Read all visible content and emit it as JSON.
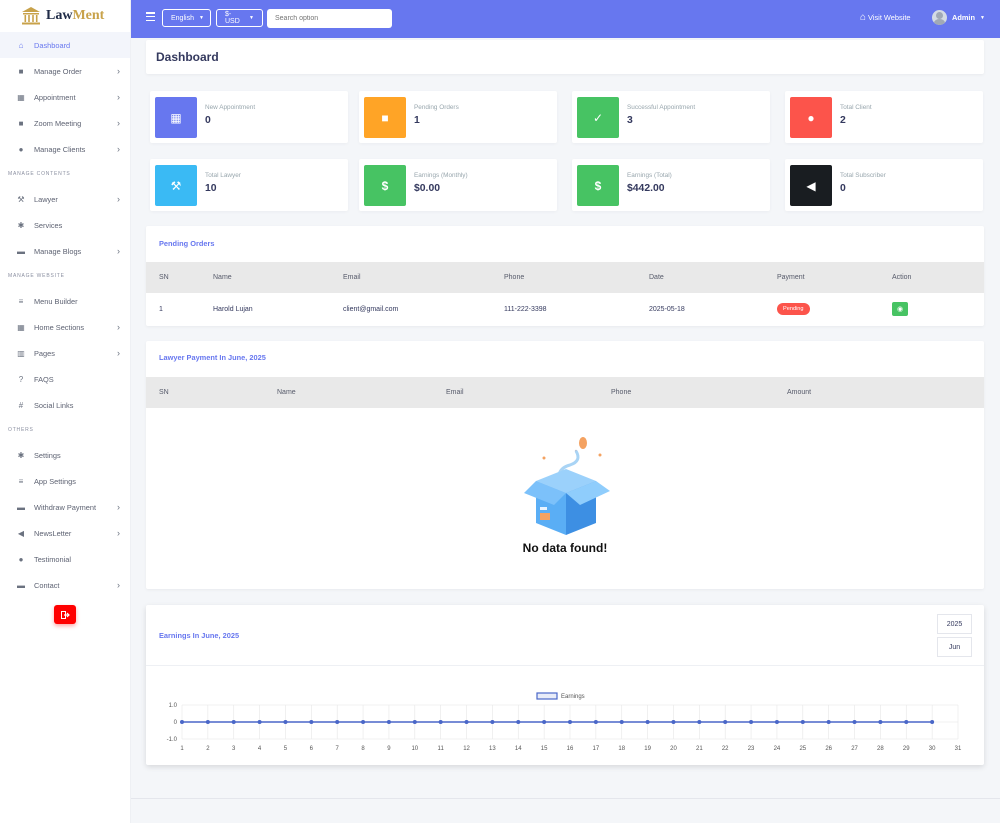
{
  "brand": {
    "name_part1": "Law",
    "name_part2": "Ment"
  },
  "sidebar": {
    "items": [
      {
        "label": "Dashboard",
        "icon": "home-icon",
        "chevron": false
      },
      {
        "label": "Manage Order",
        "icon": "shopping-bag-icon",
        "chevron": true
      },
      {
        "label": "Appointment",
        "icon": "calendar-icon",
        "chevron": true
      },
      {
        "label": "Zoom Meeting",
        "icon": "video-icon",
        "chevron": true
      },
      {
        "label": "Manage Clients",
        "icon": "user-icon",
        "chevron": true
      },
      {
        "label": "Lawyer",
        "icon": "gavel-icon",
        "chevron": true
      },
      {
        "label": "Services",
        "icon": "cog-icon",
        "chevron": false
      },
      {
        "label": "Manage Blogs",
        "icon": "newspaper-icon",
        "chevron": true
      },
      {
        "label": "Menu Builder",
        "icon": "bars-icon",
        "chevron": false
      },
      {
        "label": "Home Sections",
        "icon": "grid-icon",
        "chevron": true
      },
      {
        "label": "Pages",
        "icon": "columns-icon",
        "chevron": true
      },
      {
        "label": "FAQS",
        "icon": "question-icon",
        "chevron": false
      },
      {
        "label": "Social Links",
        "icon": "hashtag-icon",
        "chevron": false
      },
      {
        "label": "Settings",
        "icon": "gear-icon",
        "chevron": false
      },
      {
        "label": "App Settings",
        "icon": "list-icon",
        "chevron": false
      },
      {
        "label": "Withdraw Payment",
        "icon": "money-icon",
        "chevron": true
      },
      {
        "label": "NewsLetter",
        "icon": "megaphone-icon",
        "chevron": true
      },
      {
        "label": "Testimonial",
        "icon": "comment-icon",
        "chevron": false
      },
      {
        "label": "Contact",
        "icon": "envelope-icon",
        "chevron": true
      }
    ],
    "headers": [
      "MANAGE CONTENTS",
      "MANAGE WEBSITE",
      "OTHERS"
    ]
  },
  "topbar": {
    "language": "English",
    "currency": "$-USD",
    "search_placeholder": "Search option",
    "visit_website": "Visit Website",
    "user": "Admin",
    "accent": "#6777ef"
  },
  "page_title": "Dashboard",
  "stats": [
    {
      "label": "New Appointment",
      "value": "0",
      "color": "#6777ef",
      "icon": "calendar-icon"
    },
    {
      "label": "Pending Orders",
      "value": "1",
      "color": "#ffa426",
      "icon": "shopping-bag-icon"
    },
    {
      "label": "Successful Appointment",
      "value": "3",
      "color": "#47c363",
      "icon": "calendar-check-icon"
    },
    {
      "label": "Total Client",
      "value": "2",
      "color": "#fc544b",
      "icon": "user-icon"
    },
    {
      "label": "Total Lawyer",
      "value": "10",
      "color": "#3abaf4",
      "icon": "gavel-icon"
    },
    {
      "label": "Earnings (Monthly)",
      "value": "$0.00",
      "color": "#47c363",
      "icon": "dollar-icon"
    },
    {
      "label": "Earnings (Total)",
      "value": "$442.00",
      "color": "#47c363",
      "icon": "dollar-icon"
    },
    {
      "label": "Total Subscriber",
      "value": "0",
      "color": "#191d21",
      "icon": "megaphone-icon"
    }
  ],
  "pending_orders": {
    "title": "Pending Orders",
    "columns": [
      "SN",
      "Name",
      "Email",
      "Phone",
      "Date",
      "Payment",
      "Action"
    ],
    "rows": [
      {
        "sn": "1",
        "name": "Harold Lujan",
        "email": "client@gmail.com",
        "phone": "111-222-3398",
        "date": "2025-05-18",
        "payment": "Pending"
      }
    ]
  },
  "lawyer_payment": {
    "title": "Lawyer Payment In June, 2025",
    "columns": [
      "SN",
      "Name",
      "Email",
      "Phone",
      "Amount"
    ],
    "empty_text": "No data found!"
  },
  "earnings": {
    "title": "Earnings In June, 2025",
    "year": "2025",
    "month": "Jun"
  },
  "chart_data": {
    "type": "line",
    "legend": "Earnings",
    "legend_position": "top",
    "x": [
      1,
      2,
      3,
      4,
      5,
      6,
      7,
      8,
      9,
      10,
      11,
      12,
      13,
      14,
      15,
      16,
      17,
      18,
      19,
      20,
      21,
      22,
      23,
      24,
      25,
      26,
      27,
      28,
      29,
      30
    ],
    "x_ticks": [
      "1",
      "2",
      "3",
      "4",
      "5",
      "6",
      "7",
      "8",
      "9",
      "10",
      "11",
      "12",
      "13",
      "14",
      "15",
      "16",
      "17",
      "18",
      "19",
      "20",
      "21",
      "22",
      "23",
      "24",
      "25",
      "26",
      "27",
      "28",
      "29",
      "30",
      "31"
    ],
    "series": [
      {
        "name": "Earnings",
        "values": [
          0,
          0,
          0,
          0,
          0,
          0,
          0,
          0,
          0,
          0,
          0,
          0,
          0,
          0,
          0,
          0,
          0,
          0,
          0,
          0,
          0,
          0,
          0,
          0,
          0,
          0,
          0,
          0,
          0,
          0
        ],
        "color": "#4a67c8"
      }
    ],
    "y_ticks": [
      "1.0",
      "0",
      "-1.0"
    ],
    "ylim": [
      -1,
      1
    ],
    "xlim": [
      1,
      31
    ],
    "grid": true
  }
}
